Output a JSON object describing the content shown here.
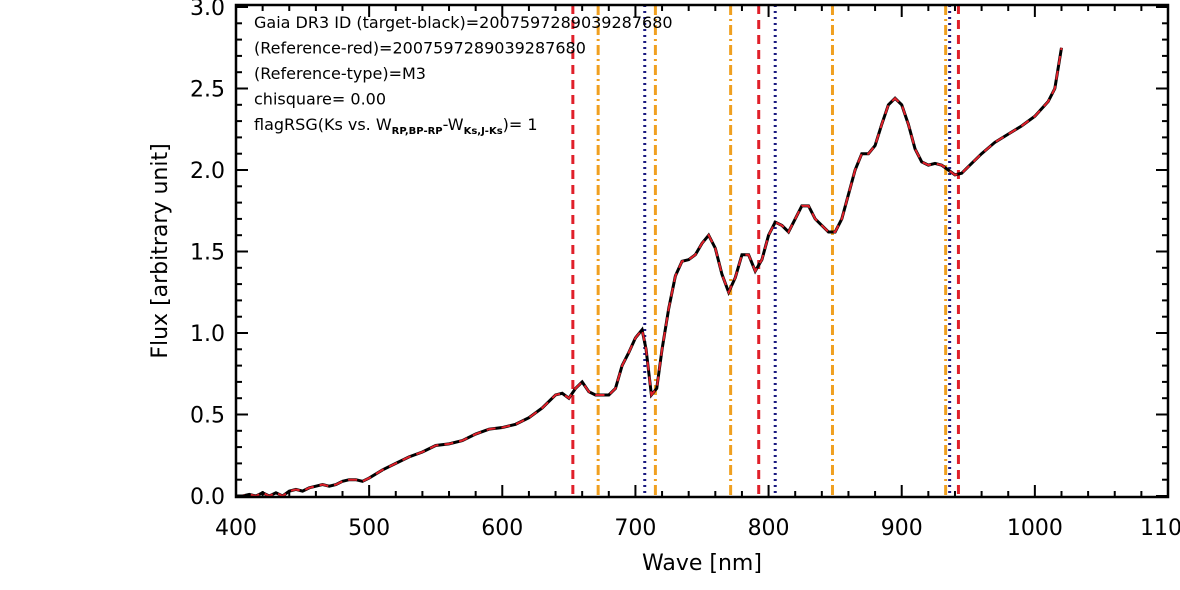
{
  "chart_data": {
    "type": "line",
    "xlabel": "Wave [nm]",
    "ylabel": "Flux [arbitrary unit]",
    "xlim": [
      400,
      1100
    ],
    "ylim": [
      0,
      3.0
    ],
    "xticks": [
      400,
      500,
      600,
      700,
      800,
      900,
      1000,
      1100
    ],
    "yticks": [
      {
        "value": 0,
        "label": "0.0"
      },
      0.5,
      {
        "value": 1,
        "label": "1.0"
      },
      1.5,
      {
        "value": 2,
        "label": "2.0"
      },
      2.5,
      {
        "value": 3,
        "label": "3.0"
      }
    ],
    "x_minor_per_major": 5,
    "y_minor_per_major": 5,
    "x": [
      400,
      405,
      410,
      415,
      420,
      425,
      430,
      435,
      440,
      445,
      450,
      455,
      460,
      465,
      470,
      475,
      480,
      485,
      490,
      495,
      500,
      510,
      520,
      530,
      540,
      550,
      560,
      570,
      580,
      590,
      600,
      610,
      620,
      630,
      640,
      645,
      650,
      655,
      660,
      665,
      670,
      680,
      685,
      690,
      695,
      700,
      705,
      708,
      712,
      716,
      720,
      725,
      730,
      735,
      740,
      745,
      750,
      755,
      760,
      765,
      770,
      775,
      780,
      785,
      790,
      795,
      800,
      805,
      810,
      815,
      820,
      825,
      830,
      835,
      840,
      845,
      850,
      855,
      860,
      865,
      870,
      875,
      880,
      885,
      890,
      895,
      900,
      905,
      910,
      915,
      920,
      925,
      930,
      935,
      940,
      945,
      950,
      960,
      970,
      980,
      990,
      1000,
      1010,
      1015,
      1020
    ],
    "series": [
      {
        "name": "target",
        "color": "#000000",
        "dash": "solid",
        "values": [
          0.0,
          0.0,
          0.01,
          0.0,
          0.02,
          0.0,
          0.02,
          0.0,
          0.03,
          0.04,
          0.03,
          0.05,
          0.06,
          0.07,
          0.06,
          0.07,
          0.09,
          0.1,
          0.1,
          0.09,
          0.11,
          0.16,
          0.2,
          0.24,
          0.27,
          0.31,
          0.32,
          0.34,
          0.38,
          0.41,
          0.42,
          0.44,
          0.48,
          0.54,
          0.62,
          0.63,
          0.6,
          0.66,
          0.7,
          0.64,
          0.62,
          0.62,
          0.66,
          0.8,
          0.88,
          0.97,
          1.02,
          0.9,
          0.62,
          0.66,
          0.9,
          1.15,
          1.35,
          1.44,
          1.45,
          1.48,
          1.55,
          1.6,
          1.52,
          1.36,
          1.25,
          1.34,
          1.48,
          1.48,
          1.38,
          1.45,
          1.6,
          1.68,
          1.66,
          1.62,
          1.7,
          1.78,
          1.78,
          1.7,
          1.66,
          1.62,
          1.62,
          1.7,
          1.85,
          2.0,
          2.1,
          2.1,
          2.15,
          2.28,
          2.4,
          2.44,
          2.4,
          2.28,
          2.13,
          2.05,
          2.03,
          2.04,
          2.03,
          2.0,
          1.97,
          1.98,
          2.02,
          2.1,
          2.17,
          2.22,
          2.27,
          2.33,
          2.42,
          2.5,
          2.75
        ]
      },
      {
        "name": "reference",
        "color": "#e0202a",
        "dash": "dashed",
        "values": [
          0.0,
          0.0,
          0.01,
          0.0,
          0.02,
          0.0,
          0.02,
          0.0,
          0.03,
          0.04,
          0.03,
          0.05,
          0.06,
          0.07,
          0.06,
          0.07,
          0.09,
          0.1,
          0.1,
          0.09,
          0.11,
          0.16,
          0.2,
          0.24,
          0.27,
          0.31,
          0.32,
          0.34,
          0.38,
          0.41,
          0.42,
          0.44,
          0.48,
          0.54,
          0.62,
          0.63,
          0.6,
          0.66,
          0.7,
          0.64,
          0.62,
          0.62,
          0.66,
          0.8,
          0.88,
          0.97,
          1.02,
          0.9,
          0.62,
          0.66,
          0.9,
          1.15,
          1.35,
          1.44,
          1.45,
          1.48,
          1.55,
          1.6,
          1.52,
          1.36,
          1.25,
          1.34,
          1.48,
          1.48,
          1.38,
          1.45,
          1.6,
          1.68,
          1.66,
          1.62,
          1.7,
          1.78,
          1.78,
          1.7,
          1.66,
          1.62,
          1.62,
          1.7,
          1.85,
          2.0,
          2.1,
          2.1,
          2.15,
          2.28,
          2.4,
          2.44,
          2.4,
          2.28,
          2.13,
          2.05,
          2.03,
          2.04,
          2.03,
          2.0,
          1.97,
          1.98,
          2.02,
          2.1,
          2.17,
          2.22,
          2.27,
          2.33,
          2.42,
          2.5,
          2.75
        ]
      }
    ],
    "vlines": [
      {
        "color": "#e0202a",
        "dash": "dashed",
        "x": [
          653,
          792.6,
          942.6
        ]
      },
      {
        "color": "#f0a020",
        "dash": "dashdot",
        "x": [
          672,
          715,
          771.5,
          848,
          933
        ]
      },
      {
        "color": "#1a1a80",
        "dash": "dotted",
        "x": [
          707,
          805,
          936
        ]
      }
    ],
    "annotations": [
      "Gaia DR3 ID (target-black)=2007597289039287680",
      "(Reference-red)=2007597289039287680",
      "(Reference-type)=M3",
      "chisquare= 0.00"
    ],
    "flag_annotation": [
      {
        "text": "flagRSG(Ks vs. W"
      },
      {
        "sub": "RP,BP-RP"
      },
      {
        "text": "-W"
      },
      {
        "sub": "Ks,J-Ks"
      },
      {
        "text": ")= 1"
      }
    ]
  }
}
